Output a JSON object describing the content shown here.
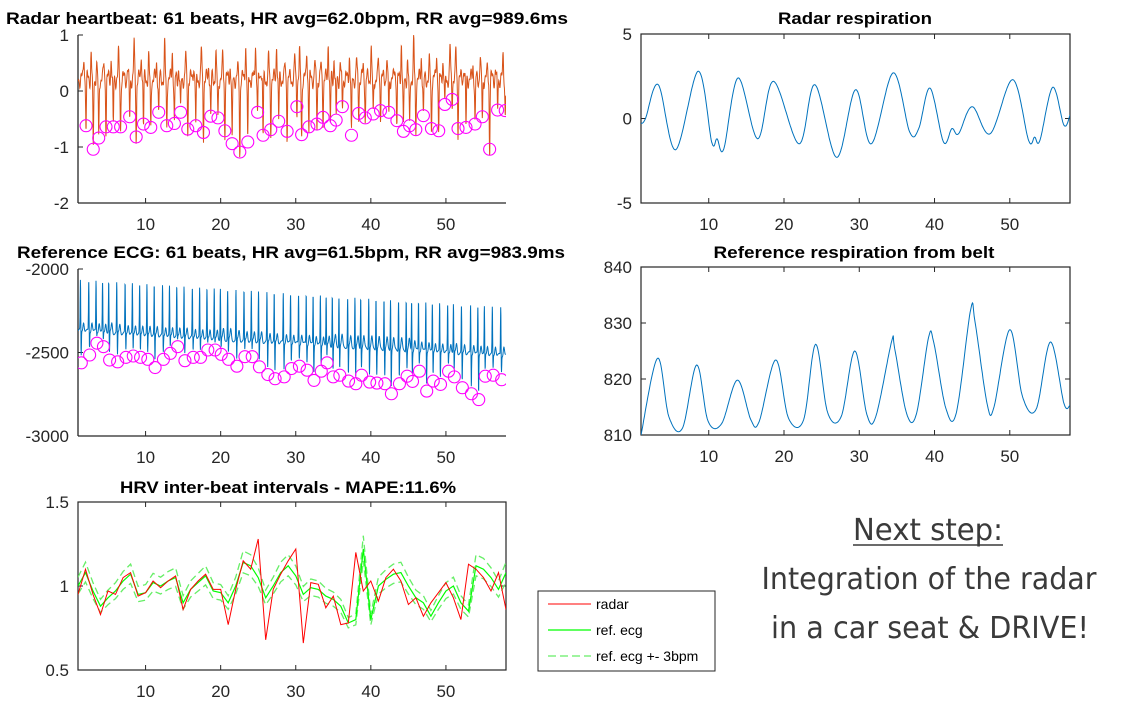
{
  "chart_data": [
    {
      "id": "radar-heartbeat",
      "type": "line",
      "title": "Radar heartbeat: 61 beats, HR avg=62.0bpm, RR avg=989.6ms",
      "xlim": [
        1,
        58
      ],
      "ylim": [
        -2,
        1
      ],
      "xticks": [
        10,
        20,
        30,
        40,
        50
      ],
      "xtick_labels": [
        "10",
        "20",
        "30",
        "40",
        "50"
      ],
      "yticks": [
        1,
        0,
        -1,
        -2
      ],
      "ytick_labels": [
        "1",
        "0",
        "-1",
        "-2"
      ],
      "line_color": "#D95319",
      "marker_color": "#FF00FF",
      "beats": {
        "x": [
          2.07,
          3.03,
          3.76,
          4.73,
          5.7,
          6.67,
          7.88,
          8.75,
          9.72,
          10.69,
          11.75,
          12.82,
          13.84,
          14.66,
          15.62,
          16.69,
          17.71,
          18.68,
          19.64,
          20.56,
          21.53,
          22.55,
          23.61,
          24.92,
          25.65,
          26.67,
          27.73,
          28.85,
          30.15,
          30.78,
          31.75,
          32.82,
          33.64,
          34.61,
          35.38,
          36.21,
          37.42,
          38.38,
          39.26,
          40.32,
          41.29,
          42.4,
          43.47,
          44.34,
          45.16,
          45.99,
          47.0,
          48.07,
          49.04,
          49.86,
          50.83,
          51.61,
          52.67,
          53.88,
          54.85,
          55.82,
          56.88,
          57.9
        ],
        "y": [
          -0.62,
          -1.04,
          -0.84,
          -0.64,
          -0.64,
          -0.64,
          -0.46,
          -0.82,
          -0.59,
          -0.65,
          -0.38,
          -0.62,
          -0.58,
          -0.38,
          -0.68,
          -0.62,
          -0.74,
          -0.45,
          -0.48,
          -0.71,
          -0.94,
          -1.09,
          -0.91,
          -0.38,
          -0.79,
          -0.69,
          -0.54,
          -0.72,
          -0.28,
          -0.78,
          -0.64,
          -0.59,
          -0.47,
          -0.62,
          -0.52,
          -0.28,
          -0.79,
          -0.4,
          -0.48,
          -0.41,
          -0.35,
          -0.38,
          -0.53,
          -0.72,
          -0.62,
          -0.69,
          -0.44,
          -0.67,
          -0.71,
          -0.24,
          -0.15,
          -0.67,
          -0.65,
          -0.59,
          -0.46,
          -1.04,
          -0.34,
          -0.35
        ]
      }
    },
    {
      "id": "reference-ecg",
      "type": "line",
      "title": "Reference ECG: 61 beats, HR avg=61.5bpm, RR avg=983.9ms",
      "xlim": [
        1,
        58
      ],
      "ylim": [
        -3000,
        -2000
      ],
      "xticks": [
        10,
        20,
        30,
        40,
        50
      ],
      "xtick_labels": [
        "10",
        "20",
        "30",
        "40",
        "50"
      ],
      "yticks": [
        -2000,
        -2500,
        -3000
      ],
      "ytick_labels": [
        "-2000",
        "-2500",
        "-3000"
      ],
      "line_color": "#0072BD",
      "marker_color": "#FF00FF",
      "beats": {
        "x": [
          1.44,
          2.55,
          3.52,
          4.39,
          5.21,
          6.28,
          7.39,
          8.36,
          9.33,
          10.3,
          11.27,
          12.38,
          13.3,
          14.27,
          15.24,
          16.35,
          17.32,
          18.29,
          19.26,
          20.08,
          21.05,
          22.16,
          23.23,
          24.2,
          25.16,
          26.28,
          27.25,
          28.46,
          29.43,
          30.49,
          31.51,
          32.43,
          33.4,
          34.17,
          34.99,
          35.87,
          37.03,
          38.0,
          38.77,
          39.84,
          40.81,
          41.87,
          42.74,
          43.81,
          44.83,
          45.55,
          46.47,
          47.44,
          48.31,
          49.28,
          50.35,
          51.12,
          52.19,
          53.4,
          54.37,
          55.24,
          56.3,
          57.42
        ],
        "y": [
          -2562,
          -2515,
          -2444,
          -2465,
          -2545,
          -2556,
          -2529,
          -2521,
          -2529,
          -2541,
          -2590,
          -2541,
          -2505,
          -2465,
          -2549,
          -2529,
          -2529,
          -2485,
          -2485,
          -2511,
          -2541,
          -2582,
          -2525,
          -2525,
          -2586,
          -2632,
          -2657,
          -2646,
          -2596,
          -2582,
          -2606,
          -2667,
          -2612,
          -2562,
          -2646,
          -2636,
          -2671,
          -2687,
          -2636,
          -2677,
          -2683,
          -2687,
          -2747,
          -2687,
          -2642,
          -2673,
          -2612,
          -2731,
          -2671,
          -2691,
          -2612,
          -2646,
          -2711,
          -2747,
          -2782,
          -2642,
          -2636,
          -2663
        ]
      }
    },
    {
      "id": "hrv",
      "type": "line",
      "title": "HRV inter-beat intervals - MAPE:11.6%",
      "xlim": [
        1,
        58
      ],
      "ylim": [
        0.5,
        1.5
      ],
      "xticks": [
        10,
        20,
        30,
        40,
        50
      ],
      "xtick_labels": [
        "10",
        "20",
        "30",
        "40",
        "50"
      ],
      "yticks": [
        1.5,
        1,
        0.5
      ],
      "ytick_labels": [
        "1.5",
        "1",
        "0.5"
      ],
      "legend": {
        "position": "outside-bottom-right",
        "entries": [
          "radar",
          "ref. ecg",
          "ref. ecg +- 3bpm"
        ]
      },
      "x": [
        1,
        2,
        3,
        4,
        5,
        6,
        7,
        8,
        9,
        10,
        11,
        12,
        13,
        14,
        15,
        16,
        17,
        18,
        19,
        20,
        21,
        22,
        23,
        24,
        25,
        26,
        27,
        28,
        29,
        30,
        31,
        32,
        33,
        34,
        35,
        36,
        37,
        38,
        39,
        40,
        41,
        42,
        43,
        44,
        45,
        46,
        47,
        48,
        49,
        50,
        51,
        52,
        53,
        54,
        55,
        56,
        57,
        58
      ],
      "series": [
        {
          "name": "radar",
          "color": "#FF0000",
          "style": "solid",
          "values": [
            0.95,
            1.1,
            0.95,
            0.83,
            0.97,
            0.95,
            1.05,
            1.08,
            0.94,
            0.96,
            1.03,
            0.99,
            1.03,
            1.06,
            0.86,
            0.98,
            1.03,
            1.07,
            0.98,
            0.98,
            0.77,
            0.98,
            1.15,
            1.1,
            1.28,
            0.68,
            0.98,
            1.07,
            1.15,
            1.22,
            0.66,
            1.02,
            1.01,
            0.87,
            0.94,
            0.77,
            0.78,
            1.2,
            0.97,
            1.03,
            0.91,
            1.05,
            1.1,
            1.03,
            0.89,
            0.93,
            0.82,
            0.9,
            0.96,
            1.02,
            0.93,
            0.8,
            1.13,
            1.1,
            1.05,
            0.97,
            1.08,
            0.86
          ]
        },
        {
          "name": "ref. ecg",
          "color": "#00FF00",
          "style": "solid",
          "values": [
            1.0,
            1.08,
            0.97,
            0.88,
            0.93,
            0.97,
            1.03,
            1.07,
            0.95,
            0.96,
            1.02,
            1.0,
            1.03,
            1.05,
            0.9,
            0.98,
            1.02,
            1.06,
            0.97,
            0.96,
            0.9,
            1.0,
            1.14,
            1.12,
            1.05,
            0.93,
            1.0,
            1.08,
            1.12,
            1.06,
            0.95,
            0.99,
            0.98,
            0.94,
            0.92,
            0.88,
            0.78,
            0.8,
            1.22,
            0.8,
            1.0,
            1.04,
            1.07,
            1.08,
            1.0,
            0.93,
            0.9,
            0.82,
            0.9,
            0.97,
            1.0,
            0.9,
            0.85,
            1.12,
            1.1,
            1.05,
            0.98,
            1.08
          ]
        },
        {
          "name": "ref. ecg +- 3bpm",
          "color": "#00FF00",
          "style": "dashed",
          "offset_bpm": 3
        }
      ]
    },
    {
      "id": "radar-respiration",
      "type": "line",
      "title": "Radar respiration",
      "xlim": [
        1,
        58
      ],
      "ylim": [
        -5,
        5
      ],
      "xticks": [
        10,
        20,
        30,
        40,
        50
      ],
      "xtick_labels": [
        "10",
        "20",
        "30",
        "40",
        "50"
      ],
      "yticks": [
        5,
        0,
        -5
      ],
      "ytick_labels": [
        "5",
        "0",
        "-5"
      ],
      "line_color": "#0072BD",
      "x": [
        1,
        1.6,
        3.3,
        5.6,
        8.6,
        10.4,
        11.1,
        12.0,
        13.9,
        16.5,
        18.6,
        22.0,
        24.1,
        27.0,
        29.5,
        31.6,
        34.5,
        36.7,
        37.9,
        39.4,
        41.2,
        42.3,
        43.2,
        45.0,
        47.4,
        50.4,
        52.5,
        53.3,
        54.0,
        55.7,
        57.2,
        58
      ],
      "y": [
        -0.3,
        0.0,
        2.0,
        -1.85,
        2.8,
        -1.4,
        -1.2,
        -1.8,
        2.4,
        -1.2,
        2.2,
        -1.5,
        2.0,
        -2.3,
        1.7,
        -1.5,
        2.7,
        -0.8,
        -0.6,
        1.8,
        -1.4,
        -0.6,
        -0.9,
        0.7,
        -0.9,
        2.3,
        -1.3,
        -1.1,
        -1.3,
        1.85,
        -0.4,
        0.2
      ]
    },
    {
      "id": "belt-respiration",
      "type": "line",
      "title": "Reference respiration from belt",
      "xlim": [
        1,
        58
      ],
      "ylim": [
        810,
        840
      ],
      "xticks": [
        10,
        20,
        30,
        40,
        50
      ],
      "xtick_labels": [
        "10",
        "20",
        "30",
        "40",
        "50"
      ],
      "yticks": [
        840,
        830,
        820,
        810
      ],
      "ytick_labels": [
        "840",
        "830",
        "820",
        "810"
      ],
      "line_color": "#0072BD",
      "x": [
        1,
        3.2,
        4.7,
        6.5,
        8.4,
        9.9,
        11.7,
        13.8,
        15.6,
        16.7,
        18.9,
        20.6,
        22.6,
        24.2,
        25.8,
        27.6,
        29.4,
        31.0,
        32.2,
        34.3,
        34.7,
        36.3,
        37.6,
        39.2,
        39.9,
        41.5,
        42.9,
        44.8,
        45.4,
        47.0,
        47.9,
        50.0,
        51.7,
        53.5,
        55.4,
        57.2,
        58
      ],
      "y": [
        810,
        823.7,
        813.3,
        811.2,
        822.5,
        812.5,
        812.0,
        819.8,
        812.7,
        812.4,
        823.4,
        813.0,
        812.7,
        826.2,
        814.0,
        813.3,
        825.0,
        813.7,
        813.3,
        826.7,
        825.5,
        813.8,
        813.8,
        827.4,
        826.5,
        814.8,
        814.0,
        832.4,
        830.0,
        815.5,
        815.0,
        828.8,
        816.8,
        814.6,
        826.6,
        815.6,
        815.3
      ]
    }
  ],
  "note": {
    "heading": "Next step:",
    "line1": "Integration of the radar",
    "line2": "in a car seat & DRIVE!"
  }
}
